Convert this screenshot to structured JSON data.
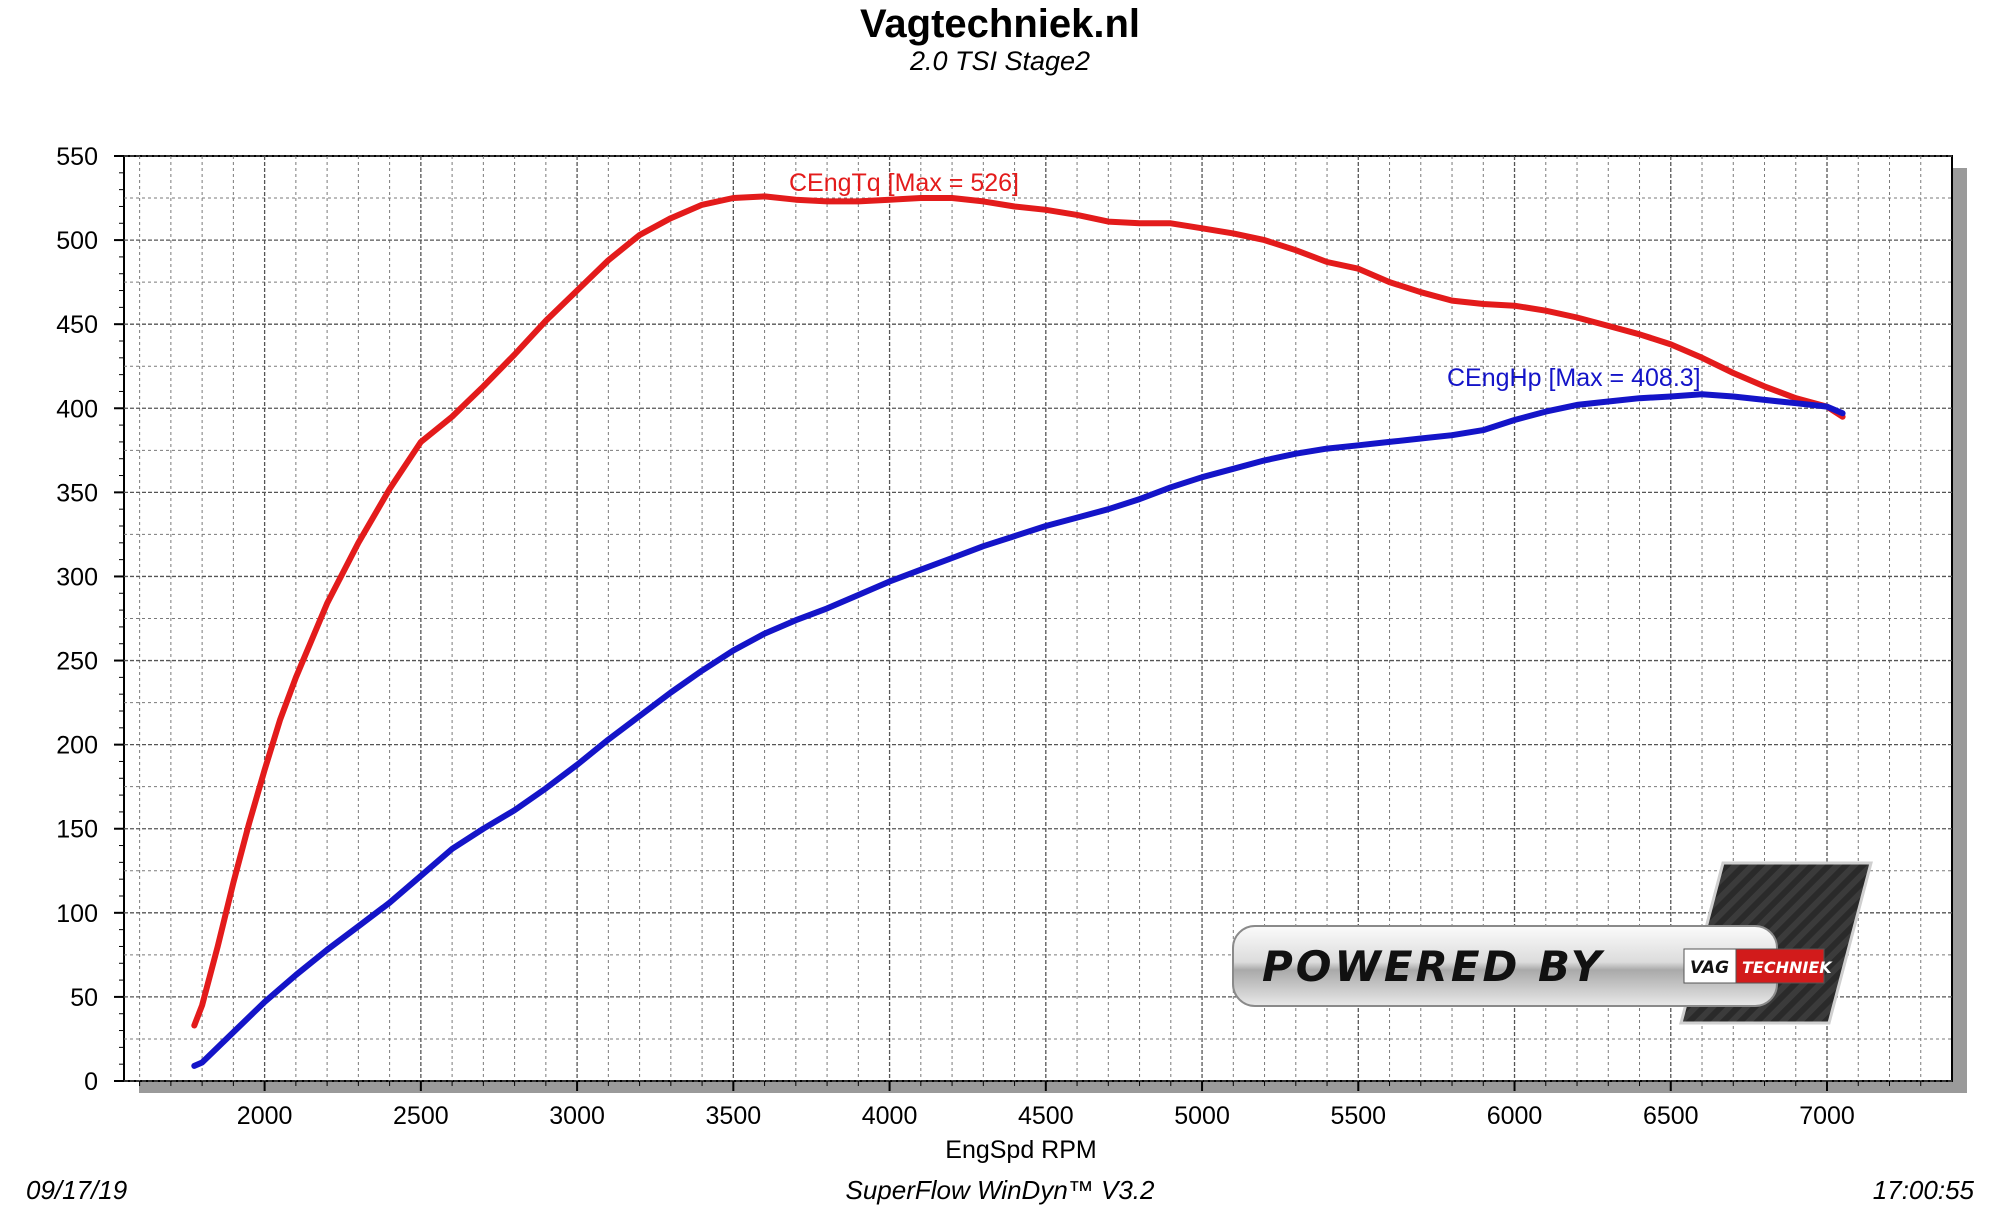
{
  "header": {
    "title": "Vagtechniek.nl",
    "subtitle": "2.0 TSI Stage2"
  },
  "footer": {
    "date": "09/17/19",
    "software": "SuperFlow WinDyn™  V3.2",
    "time": "17:00:55"
  },
  "logo": {
    "powered_by": "POWERED BY",
    "brand_part1": "VAG",
    "brand_part2": "TECHNIEK"
  },
  "colors": {
    "torque": "#e31b1b",
    "power": "#1414c8",
    "grid": "#7a7a7a",
    "shadow": "#9a9a9a"
  },
  "chart_data": {
    "type": "line",
    "xlabel": "EngSpd RPM",
    "ylabel": "",
    "xlim": [
      1550,
      7400
    ],
    "ylim": [
      0,
      550
    ],
    "x_ticks": [
      2000,
      2500,
      3000,
      3500,
      4000,
      4500,
      5000,
      5500,
      6000,
      6500,
      7000
    ],
    "y_ticks": [
      0,
      50,
      100,
      150,
      200,
      250,
      300,
      350,
      400,
      450,
      500,
      550
    ],
    "grid": true,
    "series": [
      {
        "name": "CEngTq",
        "label": "CEngTq [Max = 526]",
        "color": "#e31b1b",
        "x": [
          1775,
          1800,
          1850,
          1900,
          1950,
          2000,
          2050,
          2100,
          2200,
          2300,
          2400,
          2500,
          2600,
          2650,
          2700,
          2800,
          2900,
          3000,
          3100,
          3200,
          3300,
          3400,
          3500,
          3600,
          3700,
          3800,
          3900,
          4000,
          4100,
          4200,
          4300,
          4400,
          4500,
          4600,
          4700,
          4800,
          4900,
          5000,
          5100,
          5200,
          5300,
          5400,
          5500,
          5600,
          5700,
          5800,
          5900,
          6000,
          6100,
          6200,
          6300,
          6400,
          6500,
          6600,
          6700,
          6800,
          6900,
          7000,
          7050
        ],
        "y": [
          33,
          45,
          80,
          118,
          153,
          185,
          215,
          240,
          284,
          320,
          352,
          380,
          395,
          404,
          413,
          432,
          452,
          470,
          488,
          503,
          513,
          521,
          525,
          526,
          524,
          523,
          523,
          524,
          525,
          525,
          523,
          520,
          518,
          515,
          511,
          510,
          510,
          507,
          504,
          500,
          494,
          487,
          483,
          475,
          469,
          464,
          462,
          461,
          458,
          454,
          449,
          444,
          438,
          430,
          421,
          413,
          406,
          401,
          395
        ]
      },
      {
        "name": "CEngHp",
        "label": "CEngHp [Max = 408.3]",
        "color": "#1414c8",
        "x": [
          1775,
          1800,
          1900,
          2000,
          2100,
          2200,
          2300,
          2400,
          2500,
          2600,
          2700,
          2800,
          2900,
          3000,
          3100,
          3200,
          3300,
          3400,
          3500,
          3600,
          3700,
          3800,
          3900,
          4000,
          4100,
          4200,
          4300,
          4400,
          4500,
          4600,
          4700,
          4800,
          4900,
          5000,
          5100,
          5200,
          5300,
          5400,
          5500,
          5600,
          5700,
          5800,
          5900,
          6000,
          6100,
          6200,
          6300,
          6400,
          6500,
          6600,
          6700,
          6800,
          6900,
          7000,
          7050
        ],
        "y": [
          9,
          11,
          29,
          47,
          63,
          78,
          92,
          106,
          122,
          138,
          150,
          161,
          174,
          188,
          203,
          217,
          231,
          244,
          256,
          266,
          274,
          281,
          289,
          297,
          304,
          311,
          318,
          324,
          330,
          335,
          340,
          346,
          353,
          359,
          364,
          369,
          373,
          376,
          378,
          380,
          382,
          384,
          387,
          393,
          398,
          402,
          404,
          406,
          407,
          408.3,
          407,
          405,
          403,
          401,
          397
        ]
      }
    ]
  }
}
